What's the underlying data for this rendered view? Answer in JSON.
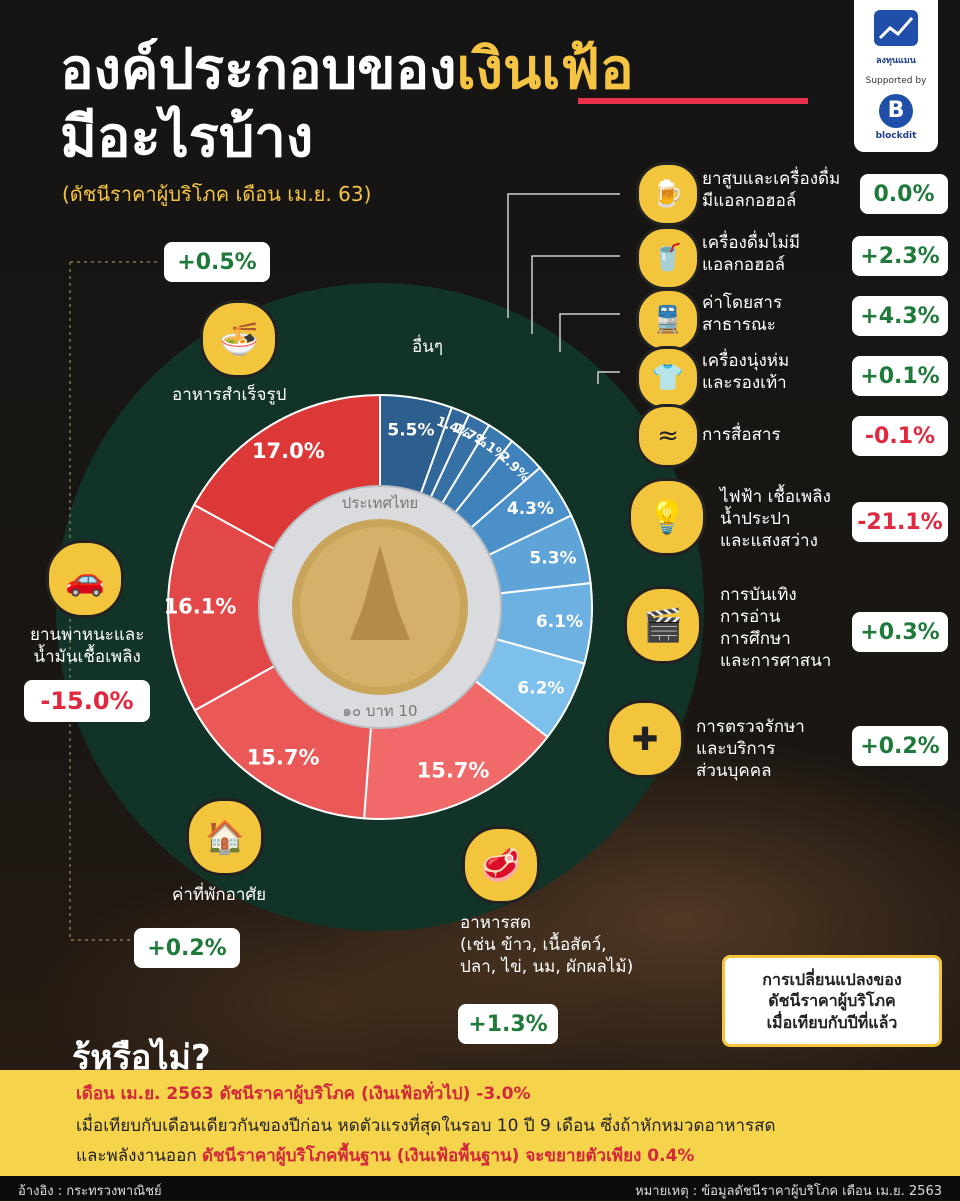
{
  "header": {
    "title_line1_a": "องค์ประกอบของ",
    "title_line1_b": "เงินเฟ้อ",
    "title_line2": "มีอะไรบ้าง",
    "subtitle": "(ดัชนีราคาผู้บริโภค เดือน เม.ย. 63)"
  },
  "branding": {
    "logo_name": "ลงทุนแมน",
    "supported_by": "Supported by",
    "sponsor_letter": "B",
    "sponsor_name": "blockdit"
  },
  "chart_data": {
    "type": "pie",
    "categories": [
      "อื่นๆ",
      "ยาสูบและเครื่องดื่มมีแอลกอฮอล์",
      "เครื่องดื่มไม่มีแอลกอฮอล์",
      "ค่าโดยสารสาธารณะ",
      "เครื่องนุ่งห่มและรองเท้า",
      "การสื่อสาร",
      "ไฟฟ้า เชื้อเพลิง น้ำประปา และแสงสว่าง",
      "การบันเทิง การอ่าน การศึกษา และการศาสนา",
      "การตรวจรักษาและบริการส่วนบุคคล",
      "อาหารสด",
      "ค่าที่พักอาศัย",
      "ยานพาหนะและน้ำมันเชื้อเพลิง",
      "อาหารสำเร็จรูป"
    ],
    "values": [
      5.5,
      1.4,
      1.7,
      2.1,
      2.9,
      4.3,
      5.3,
      6.1,
      6.2,
      15.7,
      15.7,
      16.1,
      17.0
    ],
    "value_labels": [
      "5.5%",
      "1.4%",
      "1.7%",
      "2.1%",
      "2.9%",
      "4.3%",
      "5.3%",
      "6.1%",
      "6.2%",
      "15.7%",
      "15.7%",
      "16.1%",
      "17.0%"
    ],
    "colors": [
      "#2d5f8e",
      "#32679a",
      "#3670a5",
      "#3a79b0",
      "#3f82bb",
      "#4b90c8",
      "#5ea4d8",
      "#6db1e3",
      "#7ec0ec",
      "#f06a6a",
      "#ea5858",
      "#e34848",
      "#dd3838"
    ]
  },
  "categories_right": [
    {
      "label_l1": "ยาสูบและเครื่องดื่ม",
      "label_l2": "มีแอลกอฮอล์",
      "change": "0.0%",
      "icon": "beer-cigarette-icon",
      "sign": "pos"
    },
    {
      "label_l1": "เครื่องดื่มไม่มี",
      "label_l2": "แอลกอฮอล์",
      "change": "+2.3%",
      "icon": "bottle-icon",
      "sign": "pos"
    },
    {
      "label_l1": "ค่าโดยสาร",
      "label_l2": "สาธารณะ",
      "change": "+4.3%",
      "icon": "train-icon",
      "sign": "pos"
    },
    {
      "label_l1": "เครื่องนุ่งห่ม",
      "label_l2": "และรองเท้า",
      "change": "+0.1%",
      "icon": "clothes-icon",
      "sign": "pos"
    },
    {
      "label_l1": "การสื่อสาร",
      "label_l2": "",
      "change": "-0.1%",
      "icon": "wifi-icon",
      "sign": "neg"
    },
    {
      "label_l1": "ไฟฟ้า เชื้อเพลิง",
      "label_l2": "น้ำประปา",
      "label_l3": "และแสงสว่าง",
      "change": "-21.1%",
      "icon": "utilities-icon",
      "sign": "neg"
    },
    {
      "label_l1": "การบันเทิง",
      "label_l2": "การอ่าน",
      "label_l3": "การศึกษา",
      "label_l4": "และการศาสนา",
      "change": "+0.3%",
      "icon": "media-icon",
      "sign": "pos"
    },
    {
      "label_l1": "การตรวจรักษา",
      "label_l2": "และบริการ",
      "label_l3": "ส่วนบุคคล",
      "change": "+0.2%",
      "icon": "medical-cross-icon",
      "sign": "pos"
    }
  ],
  "categories_left": {
    "ready_food": {
      "label": "อาหารสำเร็จรูป",
      "change": "+0.5%",
      "icon": "noodle-icon"
    },
    "vehicle": {
      "label_l1": "ยานพาหนะและ",
      "label_l2": "น้ำมันเชื้อเพลิง",
      "change": "-15.0%",
      "icon": "car-fuel-icon"
    },
    "housing": {
      "label": "ค่าที่พักอาศัย",
      "change": "+0.2%",
      "icon": "house-icon"
    },
    "fresh_food": {
      "label_l1": "อาหารสด",
      "label_l2": "(เช่น ข้าว, เนื้อสัตว์,",
      "label_l3": "ปลา, ไข่, นม, ผักผลไม้)",
      "change": "+1.3%",
      "icon": "meat-icon"
    },
    "others": {
      "label": "อื่นๆ"
    }
  },
  "legend": {
    "l1": "การเปลี่ยนแปลงของ",
    "l2": "ดัชนีราคาผู้บริโภค",
    "l3": "เมื่อเทียบกับปีที่แล้ว"
  },
  "did_you_know": {
    "heading": "รู้หรือไม่?",
    "line1": "เดือน เม.ย. 2563 ดัชนีราคาผู้บริโภค (เงินเฟ้อทั่วไป) -3.0%",
    "line2": "เมื่อเทียบกับเดือนเดียวกันของปีก่อน หดตัวแรงที่สุดในรอบ 10 ปี 9 เดือน ซึ่งถ้าหักหมวดอาหารสด",
    "line3a": "และพลังงานออก ",
    "line3b": "ดัชนีราคาผู้บริโภคพื้นฐาน (เงินเฟ้อพื้นฐาน) จะขยายตัวเพียง 0.4%"
  },
  "footer": {
    "source": "อ้างอิง : กระทรวงพาณิชย์",
    "note": "หมายเหตุ : ข้อมูลดัชนีราคาผู้บริโภค เดือน เม.ย. 2563"
  },
  "coin": {
    "text_top": "ประเทศไทย",
    "text_bottom": "๑๐ บาท 10"
  }
}
